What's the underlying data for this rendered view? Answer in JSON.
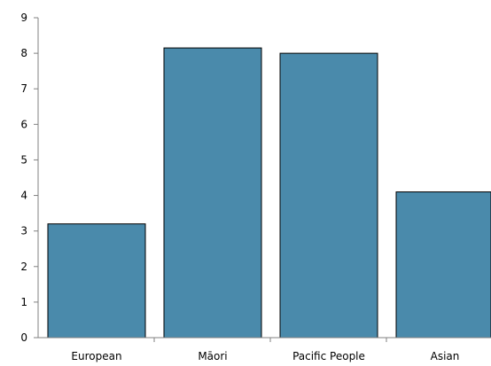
{
  "chart_data": {
    "type": "bar",
    "categories": [
      "European",
      "Māori",
      "Pacific People",
      "Asian"
    ],
    "values": [
      3.2,
      8.15,
      8.0,
      4.1
    ],
    "title": "",
    "xlabel": "",
    "ylabel": "",
    "ylim": [
      0,
      9
    ],
    "yticks": [
      "0",
      "1",
      "2",
      "3",
      "4",
      "5",
      "6",
      "7",
      "8",
      "9"
    ],
    "grid": false,
    "legend": "none",
    "bar_color": "#4a8aab"
  }
}
